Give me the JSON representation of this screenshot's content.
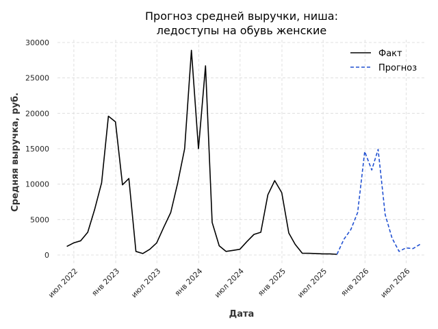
{
  "chart_data": {
    "type": "line",
    "title": [
      "Прогноз средней выручки, ниша:",
      "ледоступы на обувь женские"
    ],
    "xlabel": "Дата",
    "ylabel": "Средняя выручка, руб.",
    "ylim": [
      0,
      30000
    ],
    "yticks": [
      0,
      5000,
      10000,
      15000,
      20000,
      25000,
      30000
    ],
    "xlim": [
      "2022-04-20",
      "2026-09-25"
    ],
    "xticks": [
      {
        "date": "2022-07-01",
        "label": "июл 2022"
      },
      {
        "date": "2023-01-01",
        "label": "янв 2023"
      },
      {
        "date": "2023-07-01",
        "label": "июл 2023"
      },
      {
        "date": "2024-01-01",
        "label": "янв 2024"
      },
      {
        "date": "2024-07-01",
        "label": "июл 2024"
      },
      {
        "date": "2025-01-01",
        "label": "янв 2025"
      },
      {
        "date": "2025-07-01",
        "label": "июл 2025"
      },
      {
        "date": "2026-01-01",
        "label": "янв 2026"
      },
      {
        "date": "2026-07-01",
        "label": "июл 2026"
      }
    ],
    "grid": true,
    "legend_position": "top-right",
    "series": [
      {
        "name": "Факт",
        "color": "#000000",
        "style": "solid",
        "x": [
          "2022-05-31",
          "2022-06-30",
          "2022-07-31",
          "2022-08-31",
          "2022-09-30",
          "2022-10-31",
          "2022-11-30",
          "2022-12-31",
          "2023-01-31",
          "2023-02-28",
          "2023-03-31",
          "2023-04-30",
          "2023-05-31",
          "2023-06-30",
          "2023-07-31",
          "2023-08-31",
          "2023-09-30",
          "2023-10-31",
          "2023-11-30",
          "2023-12-31",
          "2024-01-31",
          "2024-02-29",
          "2024-03-31",
          "2024-04-30",
          "2024-05-31",
          "2024-06-30",
          "2024-07-31",
          "2024-08-31",
          "2024-09-30",
          "2024-10-31",
          "2024-11-30",
          "2024-12-31",
          "2025-01-31",
          "2025-02-28",
          "2025-03-31",
          "2025-04-30",
          "2025-05-31",
          "2025-06-30",
          "2025-07-31",
          "2025-08-31"
        ],
        "y": [
          1200,
          1700,
          2000,
          3200,
          6400,
          10200,
          19600,
          18800,
          9900,
          10800,
          500,
          200,
          800,
          1700,
          3900,
          6000,
          10100,
          15000,
          28900,
          15000,
          26700,
          4600,
          1300,
          500,
          650,
          800,
          1900,
          2900,
          3200,
          8500,
          10500,
          8800,
          3100,
          1500,
          250,
          230,
          200,
          150,
          150,
          100
        ]
      },
      {
        "name": "Прогноз",
        "color": "#1f4fd1",
        "style": "dashed",
        "x": [
          "2025-08-31",
          "2025-09-30",
          "2025-10-31",
          "2025-11-30",
          "2025-12-31",
          "2026-01-31",
          "2026-02-28",
          "2026-03-31",
          "2026-04-30",
          "2026-05-31",
          "2026-06-30",
          "2026-07-31",
          "2026-08-31"
        ],
        "y": [
          100,
          2200,
          3600,
          6000,
          14600,
          12000,
          14900,
          5700,
          2400,
          500,
          1000,
          900,
          1500
        ]
      }
    ]
  }
}
